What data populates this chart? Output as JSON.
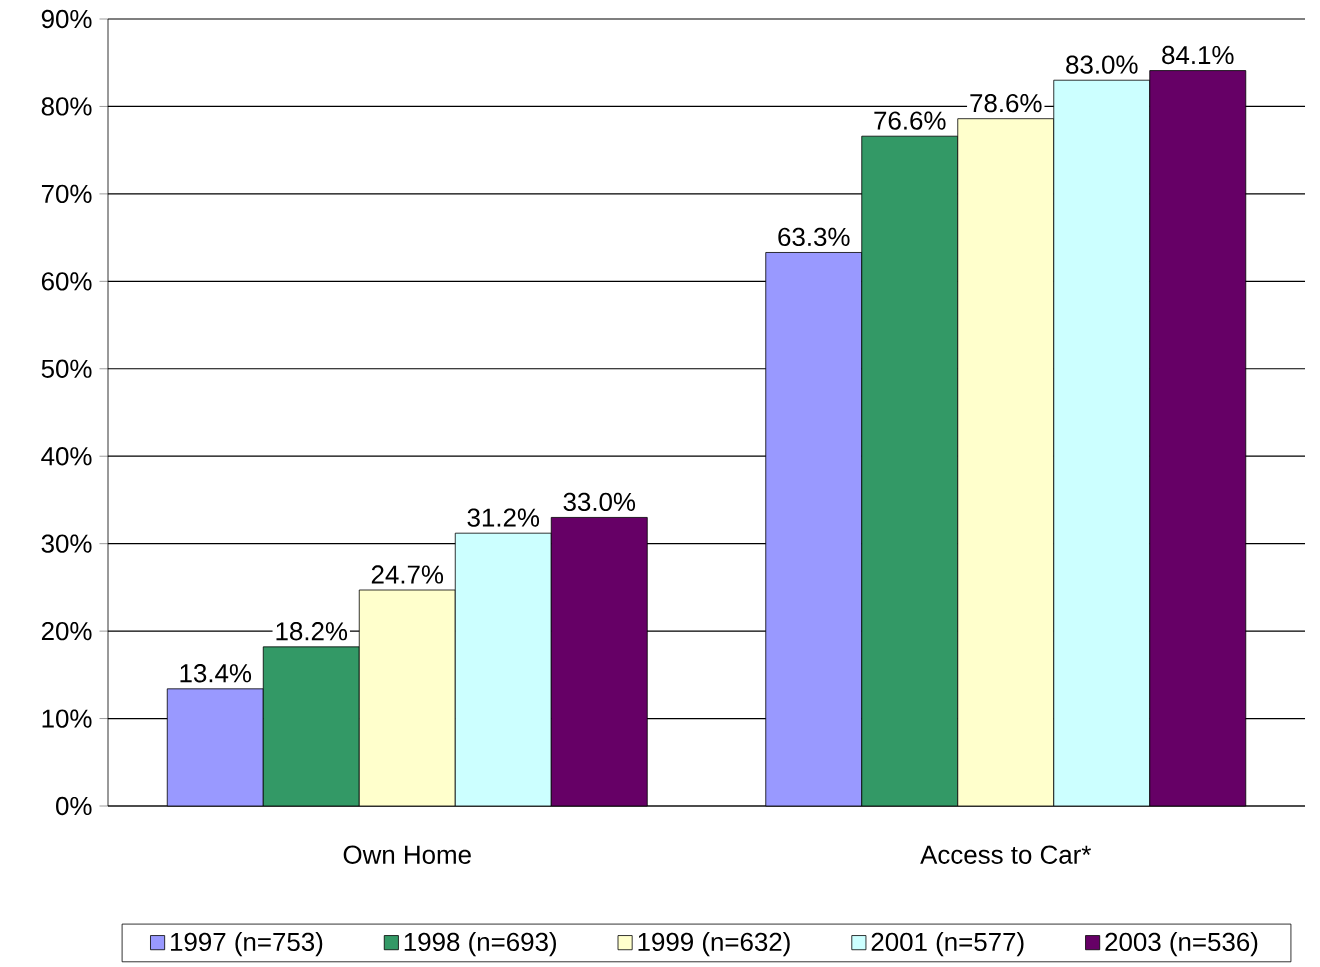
{
  "chart_data": {
    "type": "bar",
    "categories": [
      "Own Home",
      "Access to Car*"
    ],
    "series": [
      {
        "name": "1997 (n=753)",
        "color": "#9999ff",
        "values": [
          13.4,
          63.3
        ],
        "value_labels": [
          "13.4%",
          "63.3%"
        ]
      },
      {
        "name": "1998 (n=693)",
        "color": "#339966",
        "values": [
          18.2,
          76.6
        ],
        "value_labels": [
          "18.2%",
          "76.6%"
        ]
      },
      {
        "name": "1999 (n=632)",
        "color": "#ffffcc",
        "values": [
          24.7,
          78.6
        ],
        "value_labels": [
          "24.7%",
          "78.6%"
        ]
      },
      {
        "name": "2001 (n=577)",
        "color": "#ccffff",
        "values": [
          31.2,
          83.0
        ],
        "value_labels": [
          "31.2%",
          "83.0%"
        ]
      },
      {
        "name": "2003 (n=536)",
        "color": "#660066",
        "values": [
          33.0,
          84.1
        ],
        "value_labels": [
          "33.0%",
          "84.1%"
        ]
      }
    ],
    "ylim": [
      0,
      90
    ],
    "yticks": [
      {
        "value": 0,
        "label": "0%"
      },
      {
        "value": 10,
        "label": "10%"
      },
      {
        "value": 20,
        "label": "20%"
      },
      {
        "value": 30,
        "label": "30%"
      },
      {
        "value": 40,
        "label": "40%"
      },
      {
        "value": 50,
        "label": "50%"
      },
      {
        "value": 60,
        "label": "60%"
      },
      {
        "value": 70,
        "label": "70%"
      },
      {
        "value": 80,
        "label": "80%"
      },
      {
        "value": 90,
        "label": "90%"
      }
    ],
    "grid": "y",
    "legend": "bottom"
  }
}
